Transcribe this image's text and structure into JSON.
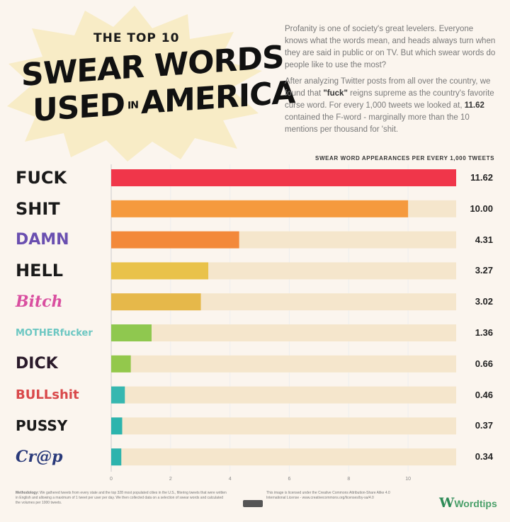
{
  "header": {
    "pre_title": "THE TOP 10",
    "title_line1": "SWEAR WORDS",
    "title_line2a": "USED",
    "title_line2b": "IN",
    "title_line2c": "AMERICA"
  },
  "intro": {
    "p1": "Profanity is one of society's great levelers. Everyone knows what the words mean, and heads always turn when they are said in public or on TV. But which swear words do people like to use the most?",
    "p2_a": "After analyzing Twitter posts from all over the country, we found that ",
    "p2_b": "\"fuck\"",
    "p2_c": " reigns supreme as the country's favorite curse word. For every 1,000 tweets we looked at, ",
    "p2_d": "11.62",
    "p2_e": " contained the F-word - marginally more than the 10 mentions per thousand for 'shit."
  },
  "chart_data": {
    "type": "bar",
    "orientation": "horizontal",
    "title": "SWEAR WORD APPEARANCES PER EVERY 1,000 TWEETS",
    "categories": [
      "FUCK",
      "SHIT",
      "DAMN",
      "HELL",
      "Bitch",
      "MOTHERfucker",
      "DICK",
      "BULLshit",
      "PUSSY",
      "Cr@p"
    ],
    "values": [
      11.62,
      10.0,
      4.31,
      3.27,
      3.02,
      1.36,
      0.66,
      0.46,
      0.37,
      0.34
    ],
    "value_labels": [
      "11.62",
      "10.00",
      "4.31",
      "3.27",
      "3.02",
      "1.36",
      "0.66",
      "0.46",
      "0.37",
      "0.34"
    ],
    "colors": [
      "#f0364a",
      "#f59a3e",
      "#f3893a",
      "#e9c24a",
      "#e6b84a",
      "#8fc84f",
      "#93c84c",
      "#36b7b0",
      "#2cb4ad",
      "#2db3ad"
    ],
    "track_color": "#f5e6cc",
    "xlim": [
      0,
      11.62
    ],
    "xticks": [
      "0",
      "2",
      "4",
      "6",
      "8",
      "10"
    ],
    "grid": true
  },
  "labels_colors": [
    "#1a1a1a",
    "#1a1a1a",
    "#6a4fb0",
    "#1a1a1a",
    "#d94fa0",
    "#6cc7c2",
    "#2a1a2a",
    "#d9484a",
    "#1a1a1a",
    "#2a3a7a"
  ],
  "footer": {
    "methodology_label": "Methodology:",
    "methodology": " We gathered tweets from every state and the top 328 most populated cities in the U.S., filtering tweets that were written in English and allowing a maximum of 1 tweet per user per day. We then collected data on a selection of swear words and calculated the volumes per 1000 tweets.",
    "license": "This image is licensed under the Creative Commons Attribution-Share Alike 4.0 International License - www.creativecommons.org/licenses/by-sa/4.0",
    "brand": "Wordtips",
    "brand_mark": "W"
  }
}
